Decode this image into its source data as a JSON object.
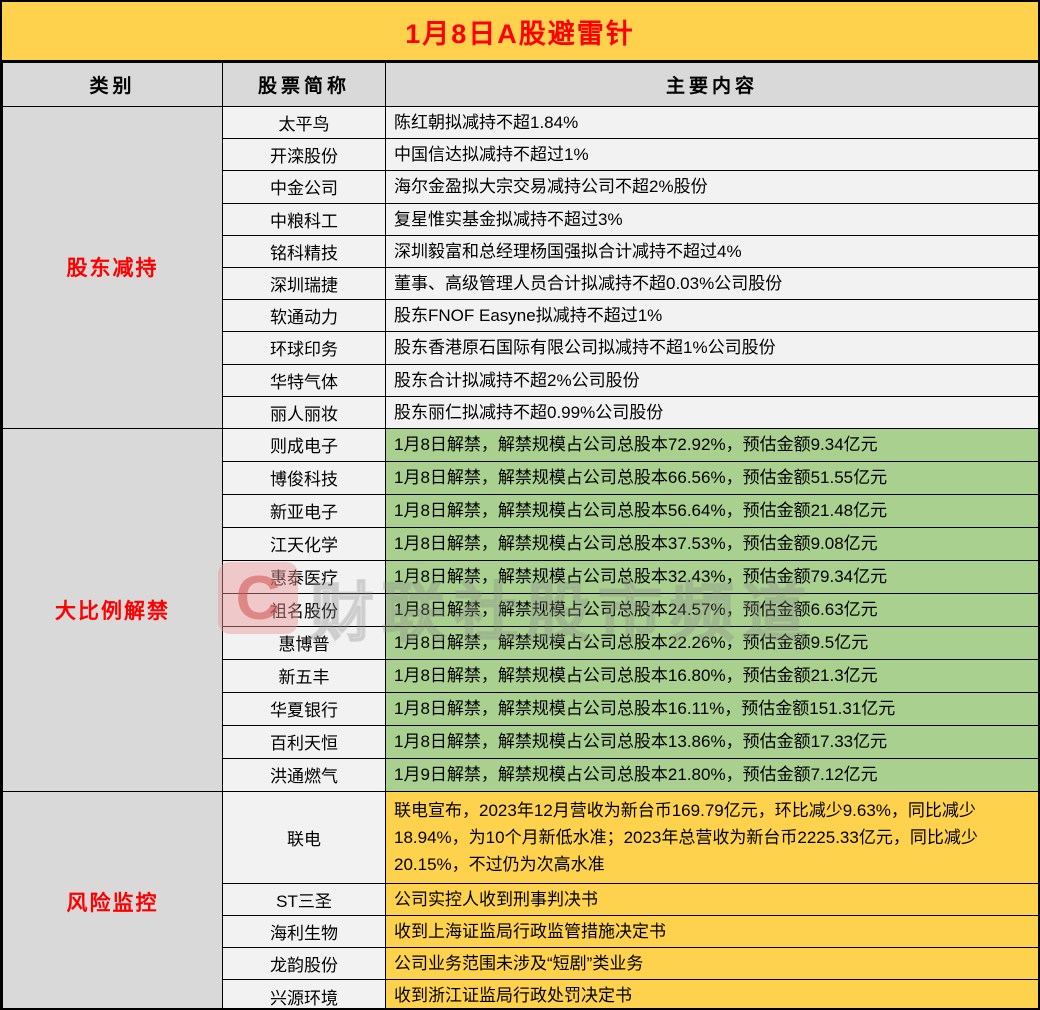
{
  "colors": {
    "gold": "#FFD24D",
    "green": "#A9D08E",
    "light_gray": "#F2F2F2",
    "header_gray": "#D9D9D9",
    "title_red": "#FF0000",
    "border": "#000000"
  },
  "watermark": {
    "logo": "C",
    "text": "财联社股市频道"
  },
  "chart_data": {
    "type": "table",
    "title": "1月8日A股避雷针",
    "columns": [
      "类别",
      "股票简称",
      "主要内容"
    ],
    "sections": [
      {
        "name": "股东减持",
        "content_bg": "#F2F2F2",
        "rows": [
          {
            "stock": "太平鸟",
            "content": "陈红朝拟减持不超1.84%"
          },
          {
            "stock": "开滦股份",
            "content": "中国信达拟减持不超过1%"
          },
          {
            "stock": "中金公司",
            "content": "海尔金盈拟大宗交易减持公司不超2%股份"
          },
          {
            "stock": "中粮科工",
            "content": "复星惟实基金拟减持不超过3%"
          },
          {
            "stock": "铭科精技",
            "content": "深圳毅富和总经理杨国强拟合计减持不超过4%"
          },
          {
            "stock": "深圳瑞捷",
            "content": "董事、高级管理人员合计拟减持不超0.03%公司股份"
          },
          {
            "stock": "软通动力",
            "content": "股东FNOF Easyne拟减持不超过1%"
          },
          {
            "stock": "环球印务",
            "content": "股东香港原石国际有限公司拟减持不超1%公司股份"
          },
          {
            "stock": "华特气体",
            "content": "股东合计拟减持不超2%公司股份"
          },
          {
            "stock": "丽人丽妆",
            "content": "股东丽仁拟减持不超0.99%公司股份"
          }
        ]
      },
      {
        "name": "大比例解禁",
        "content_bg": "#A9D08E",
        "rows": [
          {
            "stock": "则成电子",
            "content": "1月8日解禁，解禁规模占公司总股本72.92%，预估金额9.34亿元"
          },
          {
            "stock": "博俊科技",
            "content": "1月8日解禁，解禁规模占公司总股本66.56%，预估金额51.55亿元"
          },
          {
            "stock": "新亚电子",
            "content": "1月8日解禁，解禁规模占公司总股本56.64%，预估金额21.48亿元"
          },
          {
            "stock": "江天化学",
            "content": "1月8日解禁，解禁规模占公司总股本37.53%，预估金额9.08亿元"
          },
          {
            "stock": "惠泰医疗",
            "content": "1月8日解禁，解禁规模占公司总股本32.43%，预估金额79.34亿元"
          },
          {
            "stock": "祖名股份",
            "content": "1月8日解禁，解禁规模占公司总股本24.57%，预估金额6.63亿元"
          },
          {
            "stock": "惠博普",
            "content": "1月8日解禁，解禁规模占公司总股本22.26%，预估金额9.5亿元"
          },
          {
            "stock": "新五丰",
            "content": "1月8日解禁，解禁规模占公司总股本16.80%，预估金额21.3亿元"
          },
          {
            "stock": "华夏银行",
            "content": "1月8日解禁，解禁规模占公司总股本16.11%，预估金额151.31亿元"
          },
          {
            "stock": "百利天恒",
            "content": "1月8日解禁，解禁规模占公司总股本13.86%，预估金额17.33亿元"
          },
          {
            "stock": "洪通燃气",
            "content": "1月9日解禁，解禁规模占公司总股本21.80%，预估金额7.12亿元"
          }
        ]
      },
      {
        "name": "风险监控",
        "content_bg": "#FFD24D",
        "rows": [
          {
            "stock": "联电",
            "content": "联电宣布，2023年12月营收为新台币169.79亿元，环比减少9.63%，同比减少18.94%，为10个月新低水准；2023年总营收为新台币2225.33亿元，同比减少20.15%，不过仍为次高水准",
            "tall": true
          },
          {
            "stock": "ST三圣",
            "content": "公司实控人收到刑事判决书"
          },
          {
            "stock": "海利生物",
            "content": "收到上海证监局行政监管措施决定书"
          },
          {
            "stock": "龙韵股份",
            "content": "公司业务范围未涉及“短剧”类业务"
          },
          {
            "stock": "兴源环境",
            "content": "收到浙江证监局行政处罚决定书"
          }
        ]
      }
    ]
  }
}
